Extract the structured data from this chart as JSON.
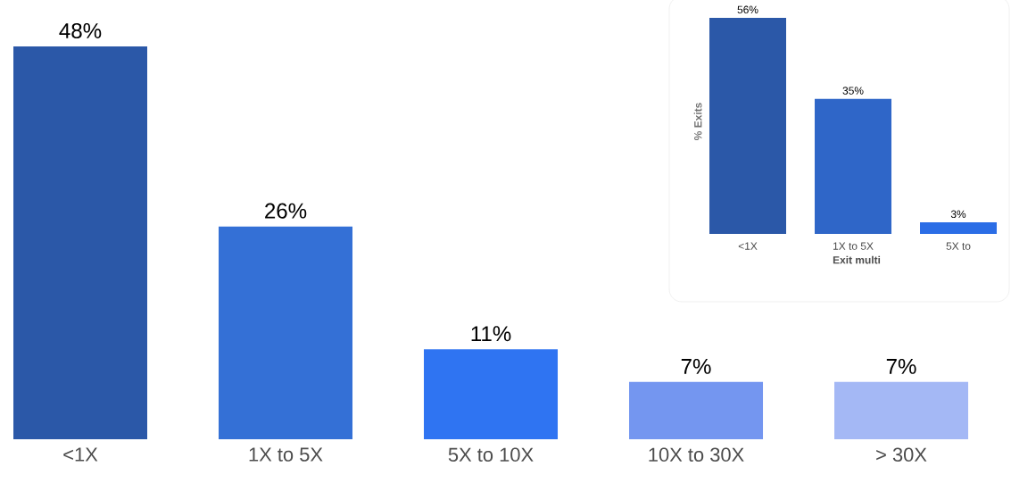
{
  "chart_data": [
    {
      "type": "bar",
      "categories": [
        "<1X",
        "1X to 5X",
        "5X to 10X",
        "10X to 30X",
        "> 30X"
      ],
      "values": [
        48,
        26,
        11,
        7,
        7
      ],
      "value_labels": [
        "48%",
        "26%",
        "11%",
        "7%",
        "7%"
      ],
      "colors": [
        "#2b58a8",
        "#3470d6",
        "#2f74f2",
        "#7496f0",
        "#a4b8f5"
      ]
    },
    {
      "type": "bar",
      "categories": [
        "<1X",
        "1X to 5X",
        "5X to"
      ],
      "values": [
        56,
        35,
        3
      ],
      "value_labels": [
        "56%",
        "35%",
        "3%"
      ],
      "ylabel": "% Exits",
      "xlabel": "Exit multi",
      "colors": [
        "#2b58a8",
        "#2f66c8",
        "#2b6de6"
      ]
    }
  ]
}
